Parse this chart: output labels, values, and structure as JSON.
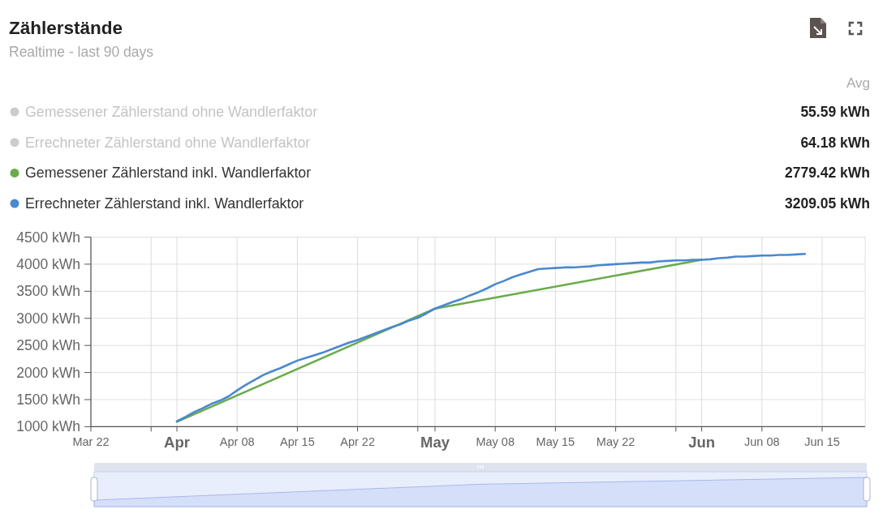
{
  "chart_data": {
    "type": "line",
    "title": "Zählerstände",
    "subtitle": "Realtime - last 90 days",
    "legend": "top",
    "grid": true,
    "annotations": [
      "Avg",
      "55.59 kWh",
      "64.18 kWh",
      "2779.42 kWh",
      "3209.05 kWh"
    ],
    "xlim": [
      "--03-22",
      "--06-20"
    ],
    "xticks": [
      {
        "value": "--03-22",
        "label": "Mar 22"
      },
      {
        "value": "--03-29",
        "label": null
      },
      {
        "value": "--04-01",
        "label": "Apr"
      },
      {
        "value": "--04-08",
        "label": "Apr 08"
      },
      {
        "value": "--04-15",
        "label": "Apr 15"
      },
      {
        "value": "--04-22",
        "label": "Apr 22"
      },
      {
        "value": "--04-29",
        "label": null
      },
      {
        "value": "--05-01",
        "label": "May"
      },
      {
        "value": "--05-08",
        "label": "May 08"
      },
      {
        "value": "--05-15",
        "label": "May 15"
      },
      {
        "value": "--05-22",
        "label": "May 22"
      },
      {
        "value": "--05-29",
        "label": null
      },
      {
        "value": "--06-01",
        "label": "Jun"
      },
      {
        "value": "--06-08",
        "label": "Jun 08"
      },
      {
        "value": "--06-15",
        "label": "Jun 15"
      }
    ],
    "ylim": [
      1000,
      4500
    ],
    "yticks": [
      {
        "value": 1000,
        "label": "1000 kWh"
      },
      {
        "value": 1500,
        "label": "1500 kWh"
      },
      {
        "value": 2000,
        "label": "2000 kWh"
      },
      {
        "value": 2500,
        "label": "2500 kWh"
      },
      {
        "value": 3000,
        "label": "3000 kWh"
      },
      {
        "value": 3500,
        "label": "3500 kWh"
      },
      {
        "value": 4000,
        "label": "4000 kWh"
      },
      {
        "value": 4500,
        "label": "4500 kWh"
      }
    ],
    "series": [
      {
        "name": "Gemessener Zählerstand ohne Wandlerfaktor",
        "color": "#cccccc"
      },
      {
        "name": "Errechneter Zählerstand ohne Wandlerfaktor",
        "color": "#cccccc"
      },
      {
        "name": "Gemessener Zählerstand inkl. Wandlerfaktor",
        "color": "#6aab4c",
        "x": [
          "--04-01",
          "--05-01",
          "--06-01"
        ],
        "values": [
          1090,
          3180,
          4080
        ]
      },
      {
        "name": "Errechneter Zählerstand inkl. Wandlerfaktor",
        "color": "#4a88d0",
        "x": [
          "--04-01",
          "--04-02",
          "--04-03",
          "--04-04",
          "--04-05",
          "--04-06",
          "--04-07",
          "--04-08",
          "--04-09",
          "--04-10",
          "--04-11",
          "--04-12",
          "--04-13",
          "--04-14",
          "--04-15",
          "--04-16",
          "--04-17",
          "--04-18",
          "--04-19",
          "--04-20",
          "--04-21",
          "--04-22",
          "--04-23",
          "--04-24",
          "--04-25",
          "--04-26",
          "--04-27",
          "--04-28",
          "--04-29",
          "--04-30",
          "--05-01",
          "--05-02",
          "--05-03",
          "--05-04",
          "--05-05",
          "--05-06",
          "--05-07",
          "--05-08",
          "--05-09",
          "--05-10",
          "--05-11",
          "--05-12",
          "--05-13",
          "--05-14",
          "--05-15",
          "--05-16",
          "--05-17",
          "--05-18",
          "--05-19",
          "--05-20",
          "--05-21",
          "--05-22",
          "--05-23",
          "--05-24",
          "--05-25",
          "--05-26",
          "--05-27",
          "--05-28",
          "--05-29",
          "--05-30",
          "--05-31",
          "--06-01",
          "--06-02",
          "--06-03",
          "--06-04",
          "--06-05",
          "--06-06",
          "--06-07",
          "--06-08",
          "--06-09",
          "--06-10",
          "--06-11",
          "--06-12",
          "--06-13"
        ],
        "values": [
          1100,
          1180,
          1270,
          1340,
          1420,
          1480,
          1560,
          1670,
          1770,
          1860,
          1950,
          2020,
          2080,
          2150,
          2220,
          2270,
          2320,
          2370,
          2430,
          2490,
          2550,
          2600,
          2660,
          2720,
          2780,
          2840,
          2890,
          2960,
          3010,
          3090,
          3180,
          3240,
          3300,
          3350,
          3420,
          3480,
          3550,
          3630,
          3690,
          3760,
          3810,
          3860,
          3910,
          3920,
          3930,
          3940,
          3940,
          3950,
          3960,
          3980,
          3990,
          4000,
          4010,
          4020,
          4030,
          4030,
          4050,
          4060,
          4070,
          4070,
          4080,
          4080,
          4090,
          4110,
          4120,
          4140,
          4140,
          4150,
          4160,
          4160,
          4170,
          4170,
          4180,
          4190
        ]
      }
    ]
  }
}
